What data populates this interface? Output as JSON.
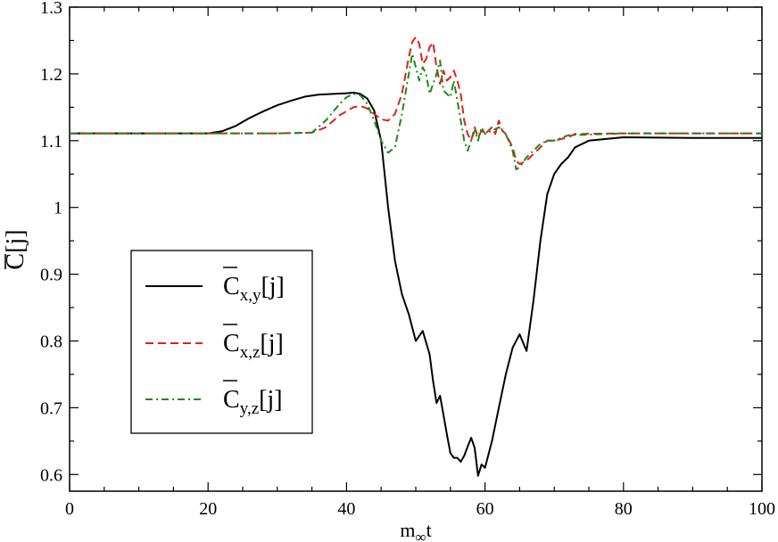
{
  "chart_data": {
    "type": "line",
    "xlabel_main": "m",
    "xlabel_sub": "∞",
    "xlabel_tail": "t",
    "ylabel_main": "C",
    "ylabel_tail": "[j]",
    "xlim": [
      0,
      100
    ],
    "ylim": [
      0.575,
      1.3
    ],
    "xticks": [
      0,
      20,
      40,
      60,
      80,
      100
    ],
    "xtick_labels": [
      "0",
      "20",
      "40",
      "60",
      "80",
      "100"
    ],
    "yticks": [
      0.6,
      0.7,
      0.8,
      0.9,
      1.0,
      1.1,
      1.2,
      1.3
    ],
    "ytick_labels": [
      "0.6",
      "0.7",
      "0.8",
      "0.9",
      "1",
      "1.1",
      "1.2",
      "1.3"
    ],
    "grid": false,
    "legend_position": "lower-left",
    "series": [
      {
        "name_main": "C",
        "name_sub": "x,y",
        "name_tail": "[j]",
        "color": "#000000",
        "dash": "solid",
        "points": [
          [
            0,
            1.111
          ],
          [
            10,
            1.111
          ],
          [
            20,
            1.111
          ],
          [
            22,
            1.114
          ],
          [
            24,
            1.122
          ],
          [
            26,
            1.134
          ],
          [
            28,
            1.144
          ],
          [
            30,
            1.153
          ],
          [
            32,
            1.16
          ],
          [
            34,
            1.166
          ],
          [
            36,
            1.169
          ],
          [
            38,
            1.17
          ],
          [
            40,
            1.171
          ],
          [
            41,
            1.172
          ],
          [
            42,
            1.17
          ],
          [
            43,
            1.163
          ],
          [
            44,
            1.145
          ],
          [
            45,
            1.1
          ],
          [
            46,
            1.0
          ],
          [
            47,
            0.92
          ],
          [
            48,
            0.87
          ],
          [
            49,
            0.84
          ],
          [
            50,
            0.8
          ],
          [
            51,
            0.815
          ],
          [
            52,
            0.78
          ],
          [
            52.5,
            0.74
          ],
          [
            53,
            0.707
          ],
          [
            53.5,
            0.718
          ],
          [
            54,
            0.69
          ],
          [
            54.5,
            0.66
          ],
          [
            55,
            0.632
          ],
          [
            55.5,
            0.625
          ],
          [
            56,
            0.625
          ],
          [
            56.5,
            0.619
          ],
          [
            57,
            0.628
          ],
          [
            57.5,
            0.642
          ],
          [
            58,
            0.655
          ],
          [
            58.5,
            0.64
          ],
          [
            59,
            0.598
          ],
          [
            59.5,
            0.615
          ],
          [
            60,
            0.61
          ],
          [
            61,
            0.65
          ],
          [
            62,
            0.7
          ],
          [
            63,
            0.75
          ],
          [
            64,
            0.79
          ],
          [
            65,
            0.81
          ],
          [
            66,
            0.785
          ],
          [
            67,
            0.86
          ],
          [
            68,
            0.95
          ],
          [
            69,
            1.02
          ],
          [
            70,
            1.05
          ],
          [
            71,
            1.065
          ],
          [
            72,
            1.075
          ],
          [
            73,
            1.09
          ],
          [
            75,
            1.1
          ],
          [
            80,
            1.105
          ],
          [
            90,
            1.104
          ],
          [
            100,
            1.104
          ]
        ]
      },
      {
        "name_main": "C",
        "name_sub": "x,z",
        "name_tail": "[j]",
        "color": "#e0201b",
        "dash": "dashed",
        "points": [
          [
            0,
            1.111
          ],
          [
            10,
            1.111
          ],
          [
            20,
            1.111
          ],
          [
            30,
            1.111
          ],
          [
            35,
            1.112
          ],
          [
            37,
            1.12
          ],
          [
            39,
            1.138
          ],
          [
            41,
            1.15
          ],
          [
            42,
            1.152
          ],
          [
            43,
            1.148
          ],
          [
            44,
            1.14
          ],
          [
            45,
            1.132
          ],
          [
            46,
            1.13
          ],
          [
            47,
            1.14
          ],
          [
            48,
            1.17
          ],
          [
            49,
            1.225
          ],
          [
            49.5,
            1.248
          ],
          [
            50,
            1.255
          ],
          [
            50.5,
            1.245
          ],
          [
            51,
            1.215
          ],
          [
            51.5,
            1.222
          ],
          [
            52,
            1.24
          ],
          [
            52.5,
            1.247
          ],
          [
            53,
            1.21
          ],
          [
            53.5,
            1.185
          ],
          [
            54,
            1.205
          ],
          [
            54.5,
            1.19
          ],
          [
            55,
            1.195
          ],
          [
            55.5,
            1.205
          ],
          [
            56,
            1.19
          ],
          [
            56.5,
            1.17
          ],
          [
            57,
            1.13
          ],
          [
            57.5,
            1.11
          ],
          [
            58,
            1.1
          ],
          [
            58.5,
            1.12
          ],
          [
            59,
            1.105
          ],
          [
            59.5,
            1.115
          ],
          [
            60,
            1.11
          ],
          [
            61,
            1.12
          ],
          [
            61.5,
            1.11
          ],
          [
            62,
            1.13
          ],
          [
            62.5,
            1.115
          ],
          [
            63,
            1.11
          ],
          [
            64,
            1.09
          ],
          [
            64.5,
            1.07
          ],
          [
            65,
            1.065
          ],
          [
            66,
            1.07
          ],
          [
            67,
            1.08
          ],
          [
            68,
            1.09
          ],
          [
            69,
            1.1
          ],
          [
            70,
            1.1
          ],
          [
            72,
            1.105
          ],
          [
            73,
            1.11
          ],
          [
            80,
            1.111
          ],
          [
            90,
            1.111
          ],
          [
            100,
            1.111
          ]
        ]
      },
      {
        "name_main": "C",
        "name_sub": "y,z",
        "name_tail": "[j]",
        "color": "#1a8a1a",
        "dash": "dashdot",
        "points": [
          [
            0,
            1.111
          ],
          [
            10,
            1.111
          ],
          [
            20,
            1.111
          ],
          [
            30,
            1.111
          ],
          [
            35,
            1.112
          ],
          [
            37,
            1.13
          ],
          [
            39,
            1.155
          ],
          [
            40,
            1.165
          ],
          [
            41,
            1.17
          ],
          [
            42,
            1.168
          ],
          [
            43,
            1.155
          ],
          [
            44,
            1.13
          ],
          [
            45,
            1.1
          ],
          [
            46,
            1.082
          ],
          [
            47,
            1.09
          ],
          [
            48,
            1.14
          ],
          [
            49,
            1.2
          ],
          [
            49.5,
            1.23
          ],
          [
            50,
            1.21
          ],
          [
            50.5,
            1.19
          ],
          [
            51,
            1.21
          ],
          [
            51.5,
            1.2
          ],
          [
            52,
            1.17
          ],
          [
            53,
            1.2
          ],
          [
            53.5,
            1.22
          ],
          [
            54,
            1.175
          ],
          [
            55,
            1.165
          ],
          [
            55.5,
            1.19
          ],
          [
            56,
            1.16
          ],
          [
            57,
            1.1
          ],
          [
            57.5,
            1.085
          ],
          [
            58,
            1.1
          ],
          [
            58.5,
            1.115
          ],
          [
            59,
            1.1
          ],
          [
            59.5,
            1.12
          ],
          [
            60,
            1.11
          ],
          [
            61,
            1.115
          ],
          [
            62,
            1.12
          ],
          [
            63,
            1.11
          ],
          [
            64,
            1.085
          ],
          [
            64.5,
            1.057
          ],
          [
            65,
            1.06
          ],
          [
            66,
            1.075
          ],
          [
            67,
            1.085
          ],
          [
            68,
            1.095
          ],
          [
            69,
            1.1
          ],
          [
            70,
            1.1
          ],
          [
            72,
            1.108
          ],
          [
            80,
            1.111
          ],
          [
            90,
            1.111
          ],
          [
            100,
            1.111
          ]
        ]
      }
    ]
  }
}
